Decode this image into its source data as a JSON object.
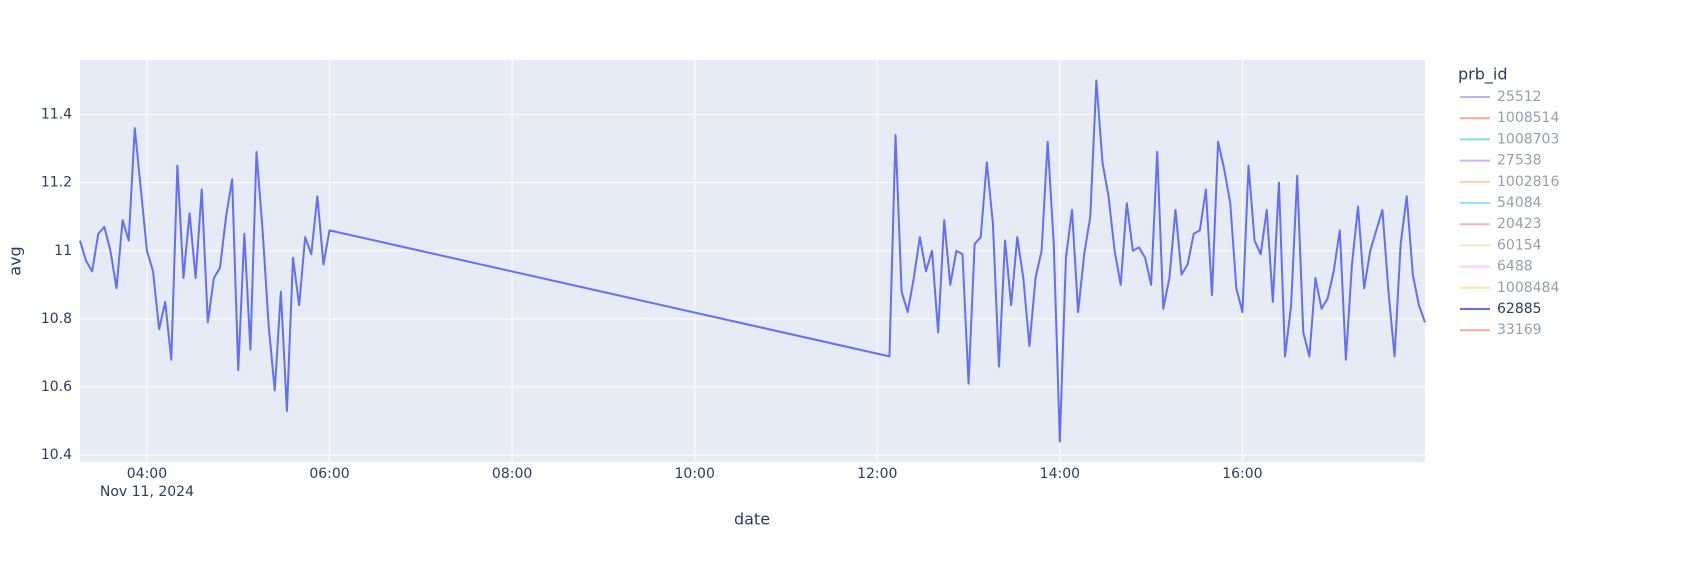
{
  "chart_data": {
    "type": "line",
    "x_label": "date",
    "y_label": "avg",
    "legend_title": "prb_id",
    "x": [
      "2024-11-11 03:16",
      "2024-11-11 03:20",
      "2024-11-11 03:24",
      "2024-11-11 03:28",
      "2024-11-11 03:32",
      "2024-11-11 03:36",
      "2024-11-11 03:40",
      "2024-11-11 03:44",
      "2024-11-11 03:48",
      "2024-11-11 03:52",
      "2024-11-11 03:56",
      "2024-11-11 04:00",
      "2024-11-11 04:04",
      "2024-11-11 04:08",
      "2024-11-11 04:12",
      "2024-11-11 04:16",
      "2024-11-11 04:20",
      "2024-11-11 04:24",
      "2024-11-11 04:28",
      "2024-11-11 04:32",
      "2024-11-11 04:36",
      "2024-11-11 04:40",
      "2024-11-11 04:44",
      "2024-11-11 04:48",
      "2024-11-11 04:52",
      "2024-11-11 04:56",
      "2024-11-11 05:00",
      "2024-11-11 05:04",
      "2024-11-11 05:08",
      "2024-11-11 05:12",
      "2024-11-11 05:16",
      "2024-11-11 05:20",
      "2024-11-11 05:24",
      "2024-11-11 05:28",
      "2024-11-11 05:32",
      "2024-11-11 05:36",
      "2024-11-11 05:40",
      "2024-11-11 05:44",
      "2024-11-11 05:48",
      "2024-11-11 05:52",
      "2024-11-11 05:56",
      "2024-11-11 06:00",
      "2024-11-11 12:08",
      "2024-11-11 12:12",
      "2024-11-11 12:16",
      "2024-11-11 12:20",
      "2024-11-11 12:24",
      "2024-11-11 12:28",
      "2024-11-11 12:32",
      "2024-11-11 12:36",
      "2024-11-11 12:40",
      "2024-11-11 12:44",
      "2024-11-11 12:48",
      "2024-11-11 12:52",
      "2024-11-11 12:56",
      "2024-11-11 13:00",
      "2024-11-11 13:04",
      "2024-11-11 13:08",
      "2024-11-11 13:12",
      "2024-11-11 13:16",
      "2024-11-11 13:20",
      "2024-11-11 13:24",
      "2024-11-11 13:28",
      "2024-11-11 13:32",
      "2024-11-11 13:36",
      "2024-11-11 13:40",
      "2024-11-11 13:44",
      "2024-11-11 13:48",
      "2024-11-11 13:52",
      "2024-11-11 13:56",
      "2024-11-11 14:00",
      "2024-11-11 14:04",
      "2024-11-11 14:08",
      "2024-11-11 14:12",
      "2024-11-11 14:16",
      "2024-11-11 14:20",
      "2024-11-11 14:24",
      "2024-11-11 14:28",
      "2024-11-11 14:32",
      "2024-11-11 14:36",
      "2024-11-11 14:40",
      "2024-11-11 14:44",
      "2024-11-11 14:48",
      "2024-11-11 14:52",
      "2024-11-11 14:56",
      "2024-11-11 15:00",
      "2024-11-11 15:04",
      "2024-11-11 15:08",
      "2024-11-11 15:12",
      "2024-11-11 15:16",
      "2024-11-11 15:20",
      "2024-11-11 15:24",
      "2024-11-11 15:28",
      "2024-11-11 15:32",
      "2024-11-11 15:36",
      "2024-11-11 15:40",
      "2024-11-11 15:44",
      "2024-11-11 15:48",
      "2024-11-11 15:52",
      "2024-11-11 15:56",
      "2024-11-11 16:00",
      "2024-11-11 16:04",
      "2024-11-11 16:08",
      "2024-11-11 16:12",
      "2024-11-11 16:16",
      "2024-11-11 16:20",
      "2024-11-11 16:24",
      "2024-11-11 16:28",
      "2024-11-11 16:32",
      "2024-11-11 16:36",
      "2024-11-11 16:40",
      "2024-11-11 16:44",
      "2024-11-11 16:48",
      "2024-11-11 16:52",
      "2024-11-11 16:56",
      "2024-11-11 17:00",
      "2024-11-11 17:04",
      "2024-11-11 17:08",
      "2024-11-11 17:12",
      "2024-11-11 17:16",
      "2024-11-11 17:20",
      "2024-11-11 17:24",
      "2024-11-11 17:28",
      "2024-11-11 17:32",
      "2024-11-11 17:36",
      "2024-11-11 17:40",
      "2024-11-11 17:44",
      "2024-11-11 17:48",
      "2024-11-11 17:52",
      "2024-11-11 17:56",
      "2024-11-11 18:00"
    ],
    "series": [
      {
        "name": "25512",
        "color": "#636efa",
        "visible": "legendonly"
      },
      {
        "name": "1008514",
        "color": "#EF553B",
        "visible": "legendonly"
      },
      {
        "name": "1008703",
        "color": "#00cc96",
        "visible": "legendonly"
      },
      {
        "name": "27538",
        "color": "#ab63fa",
        "visible": "legendonly"
      },
      {
        "name": "1002816",
        "color": "#FFA15A",
        "visible": "legendonly"
      },
      {
        "name": "54084",
        "color": "#19d3f3",
        "visible": "legendonly"
      },
      {
        "name": "20423",
        "color": "#FF6692",
        "visible": "legendonly"
      },
      {
        "name": "60154",
        "color": "#B6E880",
        "visible": "legendonly"
      },
      {
        "name": "6488",
        "color": "#FF97FF",
        "visible": "legendonly"
      },
      {
        "name": "1008484",
        "color": "#FECB52",
        "visible": "legendonly"
      },
      {
        "name": "62885",
        "color": "#636efa",
        "visible": true,
        "values": [
          11.03,
          10.97,
          10.94,
          11.05,
          11.07,
          11.0,
          10.89,
          11.09,
          11.03,
          11.36,
          11.18,
          11.0,
          10.94,
          10.77,
          10.85,
          10.68,
          11.25,
          10.92,
          11.11,
          10.92,
          11.18,
          10.79,
          10.92,
          10.95,
          11.1,
          11.21,
          10.65,
          11.05,
          10.71,
          11.29,
          11.06,
          10.78,
          10.59,
          10.88,
          10.53,
          10.98,
          10.84,
          11.04,
          10.99,
          11.16,
          10.96,
          11.06,
          10.69,
          11.34,
          10.88,
          10.82,
          10.92,
          11.04,
          10.94,
          11.0,
          10.76,
          11.09,
          10.9,
          11.0,
          10.99,
          10.61,
          11.02,
          11.04,
          11.26,
          11.08,
          10.66,
          11.03,
          10.84,
          11.04,
          10.92,
          10.72,
          10.92,
          11.0,
          11.32,
          11.02,
          10.44,
          10.98,
          11.12,
          10.82,
          10.99,
          11.1,
          11.5,
          11.26,
          11.16,
          11.0,
          10.9,
          11.14,
          11.0,
          11.01,
          10.98,
          10.9,
          11.29,
          10.83,
          10.92,
          11.12,
          10.93,
          10.96,
          11.05,
          11.06,
          11.18,
          10.87,
          11.32,
          11.24,
          11.14,
          10.89,
          10.82,
          11.25,
          11.03,
          10.99,
          11.12,
          10.85,
          11.2,
          10.69,
          10.84,
          11.22,
          10.76,
          10.69,
          10.92,
          10.83,
          10.86,
          10.94,
          11.06,
          10.68,
          10.96,
          11.13,
          10.89,
          11.0,
          11.06,
          11.12,
          10.88,
          10.69,
          11.02,
          11.16,
          10.93,
          10.84,
          10.79
        ]
      },
      {
        "name": "33169",
        "color": "#EF553B",
        "visible": "legendonly"
      }
    ],
    "xlim": [
      "2024-11-11 03:16",
      "2024-11-11 18:00"
    ],
    "xticks": [
      {
        "value": "2024-11-11 04:00",
        "label": "04:00"
      },
      {
        "value": "2024-11-11 06:00",
        "label": "06:00"
      },
      {
        "value": "2024-11-11 08:00",
        "label": "08:00"
      },
      {
        "value": "2024-11-11 10:00",
        "label": "10:00"
      },
      {
        "value": "2024-11-11 12:00",
        "label": "12:00"
      },
      {
        "value": "2024-11-11 14:00",
        "label": "14:00"
      },
      {
        "value": "2024-11-11 16:00",
        "label": "16:00"
      }
    ],
    "x_date_label": "Nov 11, 2024",
    "ylim": [
      10.38,
      11.56
    ],
    "yticks": [
      10.4,
      10.6,
      10.8,
      11,
      11.2,
      11.4
    ],
    "grid": true
  }
}
